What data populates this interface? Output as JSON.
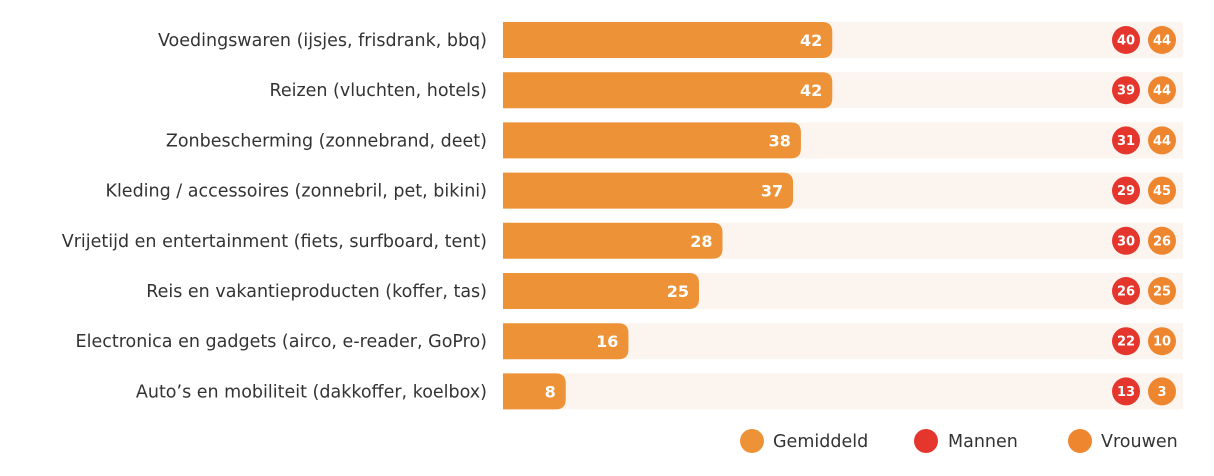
{
  "chart_data": {
    "type": "bar",
    "orientation": "horizontal",
    "categories": [
      "Voedingswaren (ijsjes, frisdrank, bbq)",
      "Reizen (vluchten, hotels)",
      "Zonbescherming (zonnebrand, deet)",
      "Kleding / accessoires (zonnebril, pet, bikini)",
      "Vrijetijd en entertainment (fiets, surfboard, tent)",
      "Reis en vakantieproducten (koffer, tas)",
      "Electronica en gadgets (airco, e-reader, GoPro)",
      "Auto’s en mobiliteit (dakkoffer, koelbox)"
    ],
    "series": [
      {
        "name": "Gemiddeld",
        "values": [
          42,
          42,
          38,
          37,
          28,
          25,
          16,
          8
        ]
      },
      {
        "name": "Mannen",
        "values": [
          40,
          39,
          31,
          29,
          30,
          26,
          22,
          13
        ]
      },
      {
        "name": "Vrouwen",
        "values": [
          44,
          44,
          44,
          45,
          26,
          25,
          10,
          3
        ]
      }
    ],
    "xlim": [
      0,
      100
    ],
    "legend_position": "bottom-right",
    "grid": false,
    "colors": {
      "Gemiddeld": "#EE9237",
      "Mannen": "#E5362D",
      "Vrouwen": "#EE8630",
      "track": "#FCF4EE"
    }
  }
}
